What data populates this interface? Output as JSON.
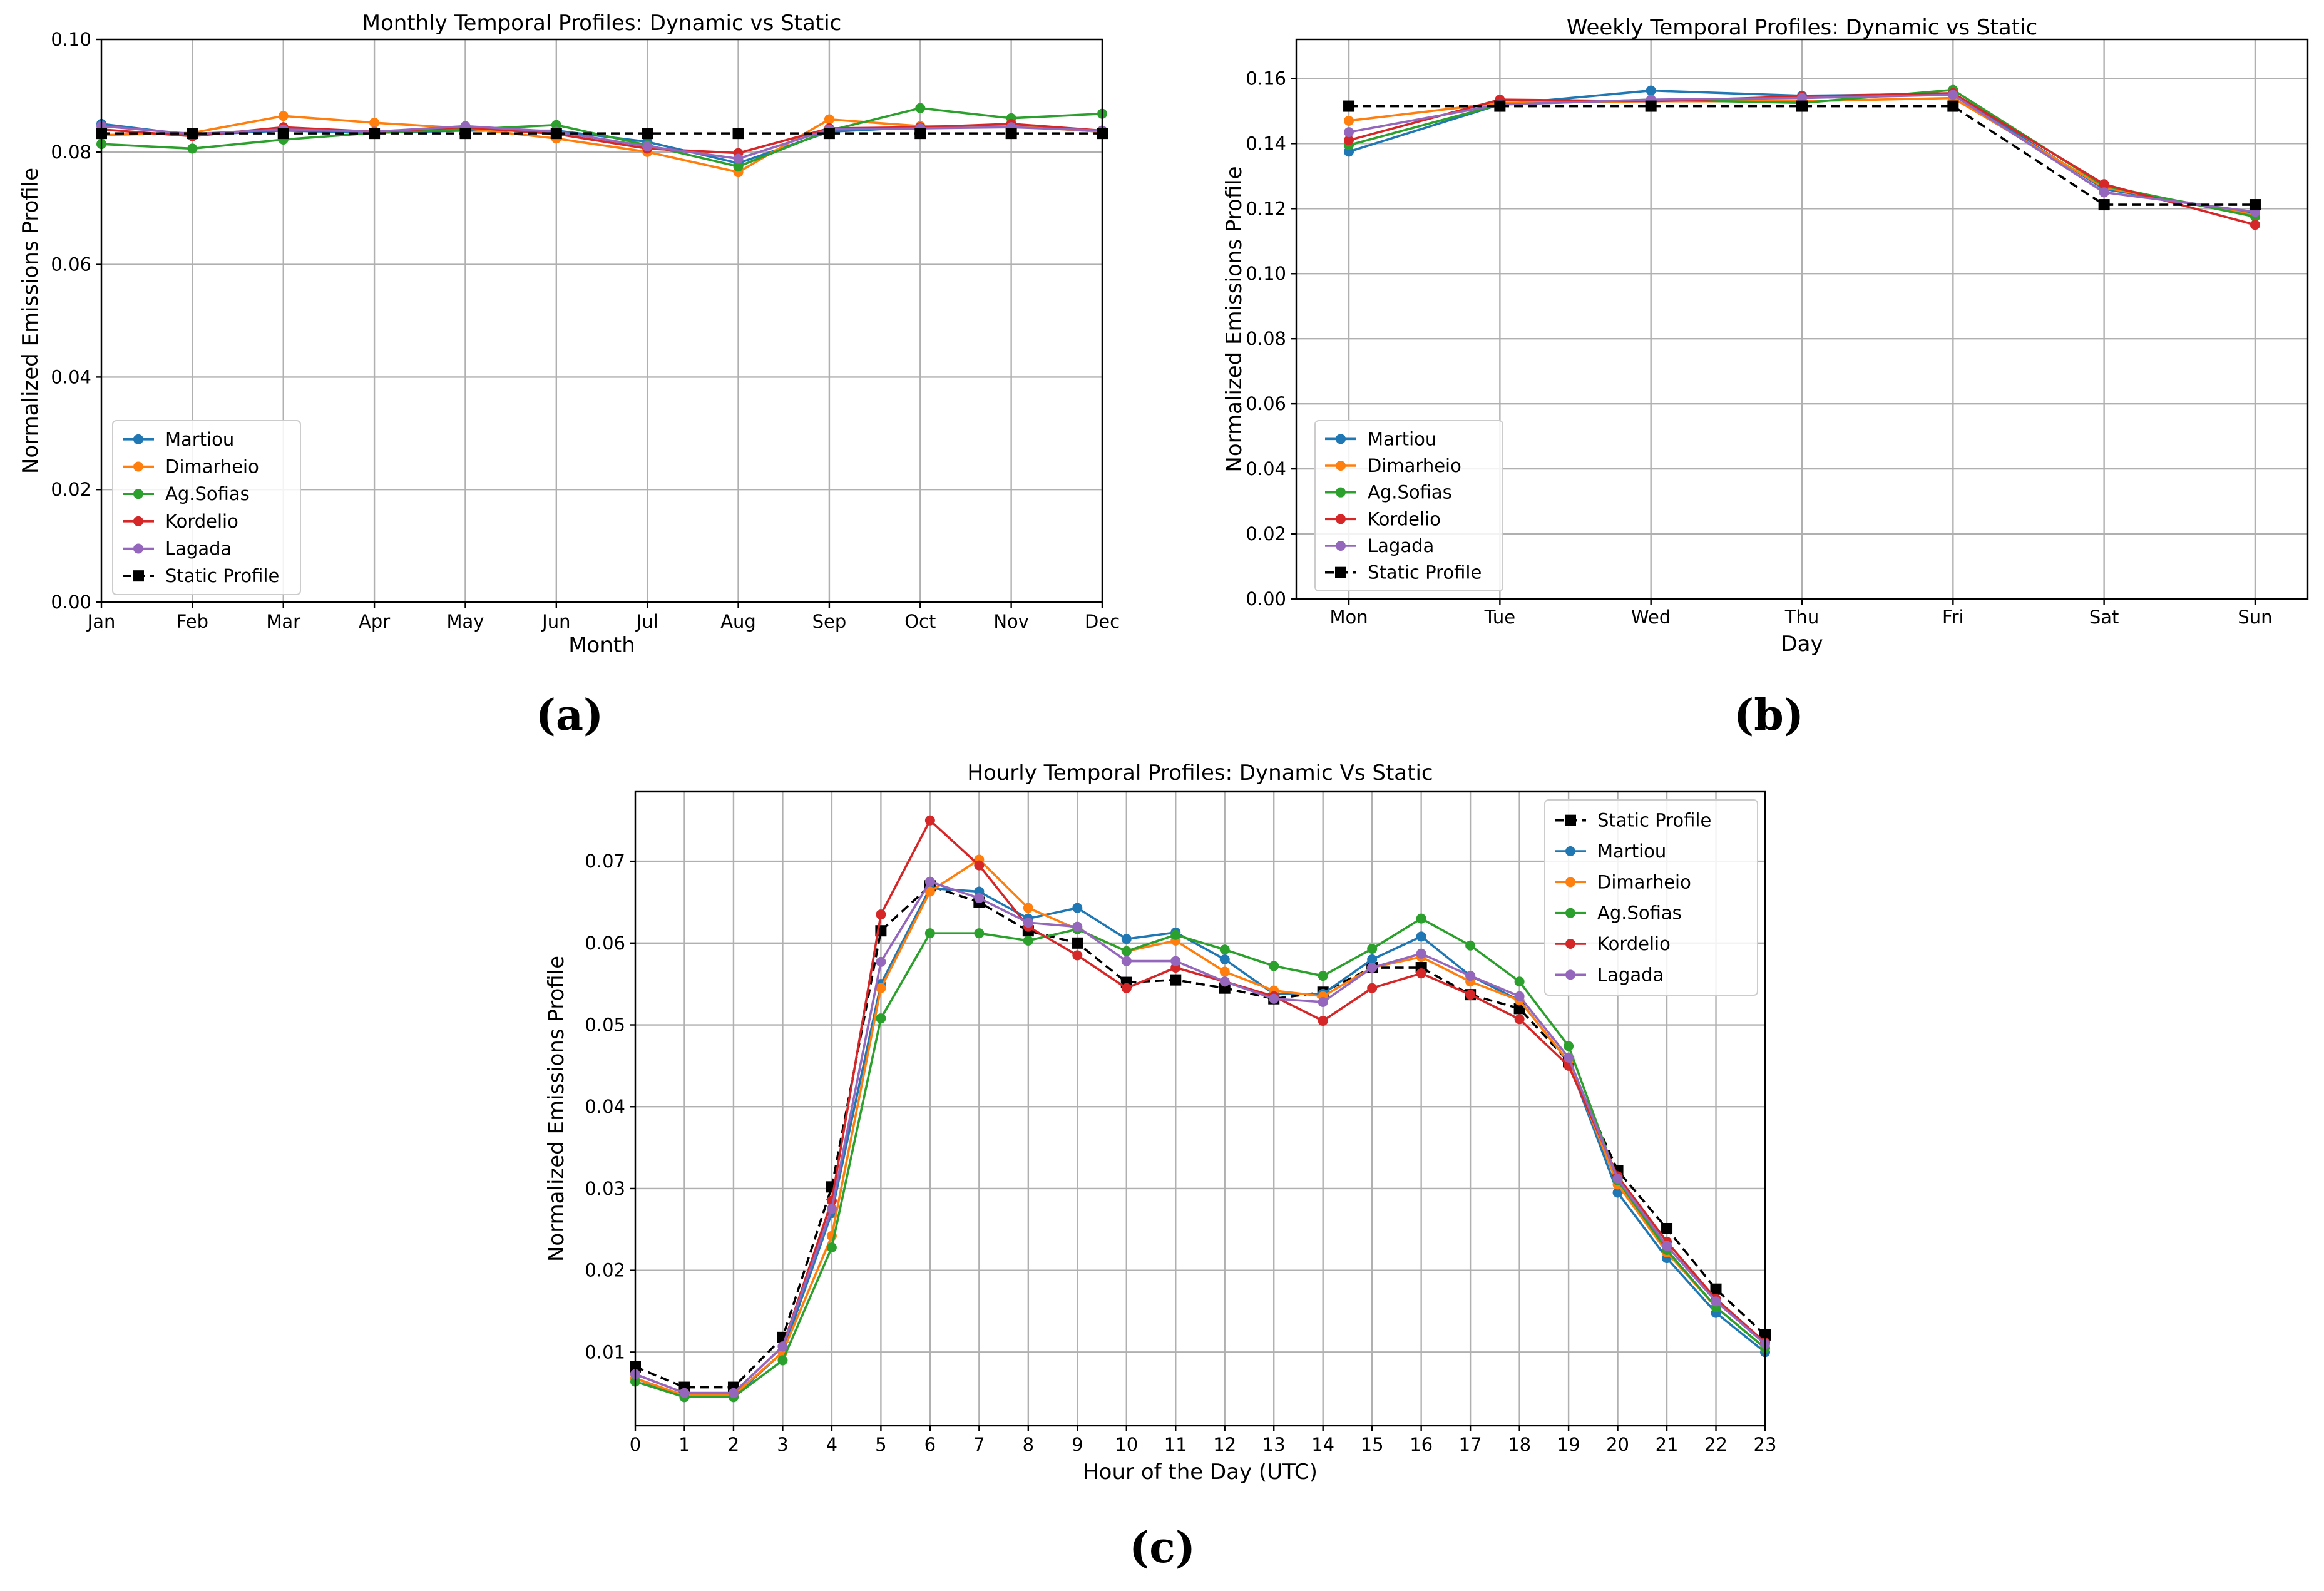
{
  "chart_data": [
    {
      "type": "line",
      "panel_label": "(a)",
      "title": "Monthly Temporal Profiles: Dynamic vs Static",
      "xlabel": "Month",
      "ylabel": "Normalized Emissions Profile",
      "categories": [
        "Jan",
        "Feb",
        "Mar",
        "Apr",
        "May",
        "Jun",
        "Jul",
        "Aug",
        "Sep",
        "Oct",
        "Nov",
        "Dec"
      ],
      "ylim": [
        0,
        0.1
      ],
      "yticks": [
        "0.00",
        "0.02",
        "0.04",
        "0.06",
        "0.08",
        "0.10"
      ],
      "grid": true,
      "legend_position": "lower-left",
      "series": [
        {
          "name": "Martiou",
          "color": "#1f77b4",
          "style": "solid",
          "marker": "circle",
          "values": [
            0.085,
            0.083,
            0.0838,
            0.0834,
            0.0838,
            0.0838,
            0.0818,
            0.078,
            0.0836,
            0.0844,
            0.0846,
            0.0836
          ]
        },
        {
          "name": "Dimarheio",
          "color": "#ff7f0e",
          "style": "solid",
          "marker": "circle",
          "values": [
            0.083,
            0.0834,
            0.0864,
            0.0852,
            0.0842,
            0.0824,
            0.08,
            0.0764,
            0.0858,
            0.0846,
            0.0846,
            0.0836
          ]
        },
        {
          "name": "Ag.Sofias",
          "color": "#2ca02c",
          "style": "solid",
          "marker": "circle",
          "values": [
            0.0814,
            0.0806,
            0.0822,
            0.0834,
            0.084,
            0.0848,
            0.0812,
            0.0774,
            0.0838,
            0.0878,
            0.086,
            0.0868
          ]
        },
        {
          "name": "Kordelio",
          "color": "#d62728",
          "style": "solid",
          "marker": "circle",
          "values": [
            0.084,
            0.0828,
            0.0844,
            0.0836,
            0.0844,
            0.0832,
            0.0806,
            0.0798,
            0.0842,
            0.0844,
            0.085,
            0.0838
          ]
        },
        {
          "name": "Lagada",
          "color": "#9467bd",
          "style": "solid",
          "marker": "circle",
          "values": [
            0.0846,
            0.0832,
            0.084,
            0.0836,
            0.0846,
            0.0836,
            0.081,
            0.0788,
            0.084,
            0.0842,
            0.0844,
            0.0838
          ]
        },
        {
          "name": "Static Profile",
          "color": "#000000",
          "style": "dashed",
          "marker": "square",
          "values": [
            0.0833,
            0.0833,
            0.0833,
            0.0833,
            0.0833,
            0.0833,
            0.0833,
            0.0833,
            0.0833,
            0.0833,
            0.0833,
            0.0833
          ]
        }
      ]
    },
    {
      "type": "line",
      "panel_label": "(b)",
      "title": "Weekly Temporal Profiles: Dynamic vs Static",
      "xlabel": "Day",
      "ylabel": "Normalized Emissions Profile",
      "categories": [
        "Mon",
        "Tue",
        "Wed",
        "Thu",
        "Fri",
        "Sat",
        "Sun"
      ],
      "ylim": [
        0,
        0.172
      ],
      "yticks": [
        "0.00",
        "0.02",
        "0.04",
        "0.06",
        "0.08",
        "0.10",
        "0.12",
        "0.14",
        "0.16"
      ],
      "grid": true,
      "legend_position": "lower-left",
      "series": [
        {
          "name": "Martiou",
          "color": "#1f77b4",
          "style": "solid",
          "marker": "circle",
          "values": [
            0.1375,
            0.152,
            0.1563,
            0.1547,
            0.1553,
            0.126,
            0.1185
          ]
        },
        {
          "name": "Dimarheio",
          "color": "#ff7f0e",
          "style": "solid",
          "marker": "circle",
          "values": [
            0.147,
            0.1525,
            0.153,
            0.153,
            0.154,
            0.1265,
            0.118
          ]
        },
        {
          "name": "Ag.Sofias",
          "color": "#2ca02c",
          "style": "solid",
          "marker": "circle",
          "values": [
            0.1395,
            0.152,
            0.1535,
            0.1525,
            0.1565,
            0.127,
            0.1175
          ]
        },
        {
          "name": "Kordelio",
          "color": "#d62728",
          "style": "solid",
          "marker": "circle",
          "values": [
            0.141,
            0.1535,
            0.153,
            0.1545,
            0.1555,
            0.1275,
            0.115
          ]
        },
        {
          "name": "Lagada",
          "color": "#9467bd",
          "style": "solid",
          "marker": "circle",
          "values": [
            0.1435,
            0.152,
            0.1535,
            0.154,
            0.155,
            0.125,
            0.119
          ]
        },
        {
          "name": "Static Profile",
          "color": "#000000",
          "style": "dashed",
          "marker": "square",
          "values": [
            0.1515,
            0.1515,
            0.1515,
            0.1515,
            0.1515,
            0.1212,
            0.1212
          ]
        }
      ]
    },
    {
      "type": "line",
      "panel_label": "(c)",
      "title": "Hourly Temporal Profiles: Dynamic Vs Static",
      "xlabel": "Hour of the Day (UTC)",
      "ylabel": "Normalized Emissions Profile",
      "categories": [
        "0",
        "1",
        "2",
        "3",
        "4",
        "5",
        "6",
        "7",
        "8",
        "9",
        "10",
        "11",
        "12",
        "13",
        "14",
        "15",
        "16",
        "17",
        "18",
        "19",
        "20",
        "21",
        "22",
        "23"
      ],
      "ylim": [
        0.001,
        0.0785
      ],
      "yticks": [
        "0.01",
        "0.02",
        "0.03",
        "0.04",
        "0.05",
        "0.06",
        "0.07"
      ],
      "ytick_values": [
        0.01,
        0.02,
        0.03,
        0.04,
        0.05,
        0.06,
        0.07
      ],
      "grid": true,
      "legend_position": "upper-right",
      "series": [
        {
          "name": "Static Profile",
          "color": "#000000",
          "style": "dashed",
          "marker": "square",
          "values": [
            0.0082,
            0.0057,
            0.0057,
            0.0118,
            0.0302,
            0.0615,
            0.067,
            0.065,
            0.0615,
            0.06,
            0.0552,
            0.0555,
            0.0545,
            0.0532,
            0.054,
            0.057,
            0.057,
            0.0537,
            0.052,
            0.0455,
            0.0322,
            0.0251,
            0.0177,
            0.0121
          ]
        },
        {
          "name": "Martiou",
          "color": "#1f77b4",
          "style": "solid",
          "marker": "circle",
          "values": [
            0.0068,
            0.0045,
            0.0045,
            0.01,
            0.027,
            0.055,
            0.0667,
            0.0663,
            0.063,
            0.0643,
            0.0605,
            0.0613,
            0.058,
            0.0538,
            0.0538,
            0.058,
            0.0608,
            0.056,
            0.053,
            0.0455,
            0.0295,
            0.0215,
            0.0148,
            0.01
          ]
        },
        {
          "name": "Dimarheio",
          "color": "#ff7f0e",
          "style": "solid",
          "marker": "circle",
          "values": [
            0.0068,
            0.0047,
            0.0047,
            0.01,
            0.0242,
            0.0545,
            0.0663,
            0.0702,
            0.0643,
            0.0617,
            0.059,
            0.0603,
            0.0565,
            0.0542,
            0.0535,
            0.057,
            0.0583,
            0.0553,
            0.053,
            0.0455,
            0.0305,
            0.0222,
            0.0155,
            0.0105
          ]
        },
        {
          "name": "Ag.Sofias",
          "color": "#2ca02c",
          "style": "solid",
          "marker": "circle",
          "values": [
            0.0064,
            0.0045,
            0.0045,
            0.009,
            0.0228,
            0.0508,
            0.0612,
            0.0612,
            0.0603,
            0.0617,
            0.059,
            0.061,
            0.0592,
            0.0572,
            0.056,
            0.0593,
            0.063,
            0.0597,
            0.0553,
            0.0474,
            0.031,
            0.0225,
            0.0155,
            0.0105
          ]
        },
        {
          "name": "Kordelio",
          "color": "#d62728",
          "style": "solid",
          "marker": "circle",
          "values": [
            0.0073,
            0.005,
            0.005,
            0.0107,
            0.0285,
            0.0635,
            0.075,
            0.0695,
            0.062,
            0.0585,
            0.0545,
            0.057,
            0.0553,
            0.0535,
            0.0505,
            0.0545,
            0.0563,
            0.0537,
            0.0507,
            0.045,
            0.0315,
            0.0235,
            0.0165,
            0.0112
          ]
        },
        {
          "name": "Lagada",
          "color": "#9467bd",
          "style": "solid",
          "marker": "circle",
          "values": [
            0.0073,
            0.005,
            0.005,
            0.0107,
            0.0275,
            0.0577,
            0.0675,
            0.0655,
            0.0625,
            0.062,
            0.0578,
            0.0578,
            0.0553,
            0.0532,
            0.0528,
            0.057,
            0.0587,
            0.056,
            0.0535,
            0.046,
            0.0312,
            0.023,
            0.0162,
            0.011
          ]
        }
      ]
    }
  ]
}
